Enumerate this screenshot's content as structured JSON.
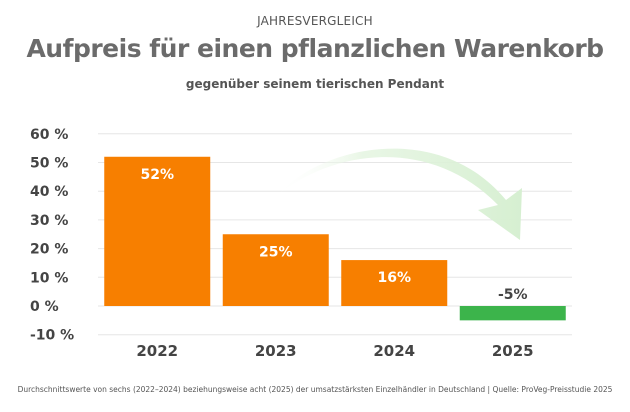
{
  "header": {
    "kicker": "JAHRESVERGLEICH",
    "title": "Aufpreis für einen pflanzlichen Warenkorb",
    "subtitle": "gegenüber seinem tierischen Pendant"
  },
  "footer": {
    "source": "Durchschnittswerte von sechs (2022–2024) beziehungsweise acht (2025) der umsatzstärksten Einzelhändler in Deutschland | Quelle: ProVeg-Preisstudie 2025"
  },
  "colors": {
    "positive": "#f77f00",
    "negative": "#3cb44b",
    "arrow": "#d9f0d6",
    "grid": "#e6e6e6",
    "axis_text": "#444444",
    "label_on_bar": "#ffffff",
    "label_outside": "#444444"
  },
  "icons": {
    "trend_arrow": "curved-down-arrow-icon"
  },
  "chart_data": {
    "type": "bar",
    "categories": [
      "2022",
      "2023",
      "2024",
      "2025"
    ],
    "values": [
      52,
      25,
      16,
      -5
    ],
    "data_labels": [
      "52%",
      "25%",
      "16%",
      "-5%"
    ],
    "ylim": [
      -10,
      60
    ],
    "yticks": [
      60,
      50,
      40,
      30,
      20,
      10,
      0,
      -10
    ],
    "ytick_labels": [
      "60 %",
      "50 %",
      "40 %",
      "30 %",
      "20 %",
      "10 %",
      "0 %",
      "-10 %"
    ],
    "grid": true
  }
}
